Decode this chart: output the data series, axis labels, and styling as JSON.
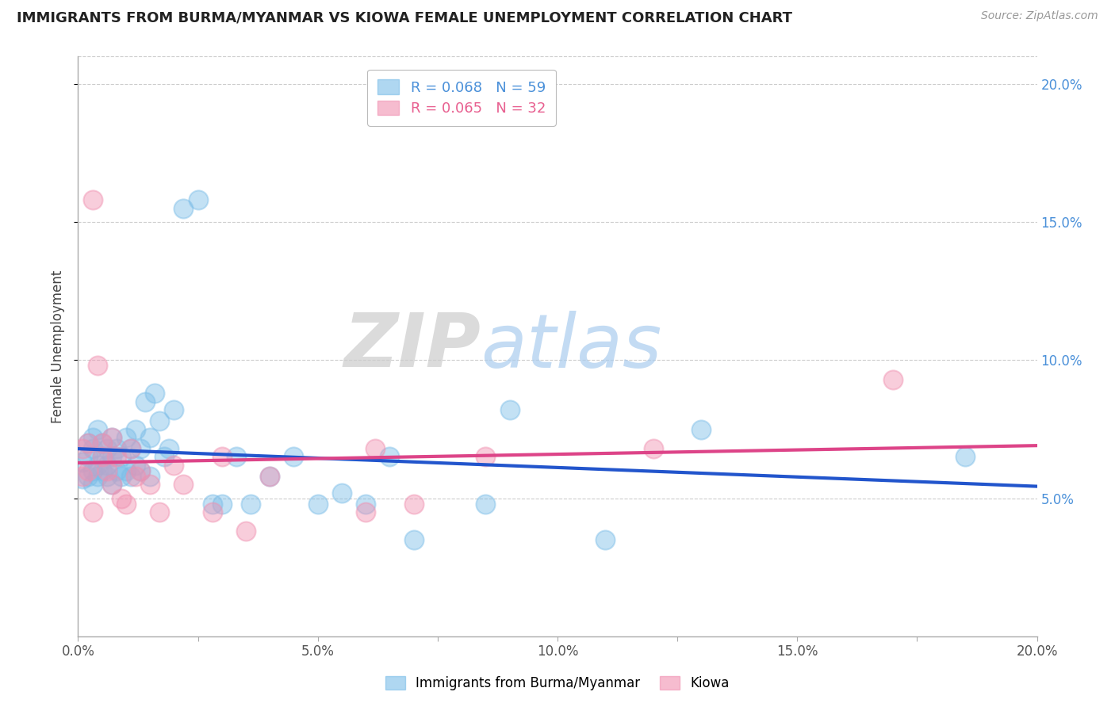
{
  "title": "IMMIGRANTS FROM BURMA/MYANMAR VS KIOWA FEMALE UNEMPLOYMENT CORRELATION CHART",
  "source_text": "Source: ZipAtlas.com",
  "ylabel": "Female Unemployment",
  "xlim": [
    0.0,
    0.2
  ],
  "ylim": [
    0.0,
    0.21
  ],
  "xtick_labels": [
    "0.0%",
    "",
    "5.0%",
    "",
    "10.0%",
    "",
    "15.0%",
    "",
    "20.0%"
  ],
  "xtick_vals": [
    0.0,
    0.025,
    0.05,
    0.075,
    0.1,
    0.125,
    0.15,
    0.175,
    0.2
  ],
  "ytick_labels": [
    "5.0%",
    "10.0%",
    "15.0%",
    "20.0%"
  ],
  "ytick_vals": [
    0.05,
    0.1,
    0.15,
    0.2
  ],
  "blue_color": "#7BBDE8",
  "pink_color": "#F090B0",
  "blue_line_color": "#2255CC",
  "pink_line_color": "#DD4488",
  "legend_blue_label": "Immigrants from Burma/Myanmar",
  "legend_pink_label": "Kiowa",
  "legend_blue_r": "R = 0.068",
  "legend_blue_n": "N = 59",
  "legend_pink_r": "R = 0.065",
  "legend_pink_n": "N = 32",
  "blue_scatter_x": [
    0.001,
    0.001,
    0.002,
    0.002,
    0.002,
    0.003,
    0.003,
    0.003,
    0.003,
    0.004,
    0.004,
    0.004,
    0.005,
    0.005,
    0.005,
    0.006,
    0.006,
    0.006,
    0.007,
    0.007,
    0.007,
    0.008,
    0.008,
    0.009,
    0.009,
    0.01,
    0.01,
    0.011,
    0.011,
    0.012,
    0.012,
    0.013,
    0.013,
    0.014,
    0.015,
    0.015,
    0.016,
    0.017,
    0.018,
    0.019,
    0.02,
    0.022,
    0.025,
    0.028,
    0.03,
    0.033,
    0.036,
    0.04,
    0.045,
    0.05,
    0.055,
    0.06,
    0.065,
    0.07,
    0.085,
    0.09,
    0.11,
    0.13,
    0.185
  ],
  "blue_scatter_y": [
    0.063,
    0.057,
    0.058,
    0.065,
    0.07,
    0.06,
    0.055,
    0.068,
    0.072,
    0.062,
    0.058,
    0.075,
    0.06,
    0.065,
    0.07,
    0.058,
    0.062,
    0.068,
    0.055,
    0.065,
    0.072,
    0.06,
    0.068,
    0.058,
    0.065,
    0.06,
    0.072,
    0.058,
    0.068,
    0.062,
    0.075,
    0.06,
    0.068,
    0.085,
    0.058,
    0.072,
    0.088,
    0.078,
    0.065,
    0.068,
    0.082,
    0.155,
    0.158,
    0.048,
    0.048,
    0.065,
    0.048,
    0.058,
    0.065,
    0.048,
    0.052,
    0.048,
    0.065,
    0.035,
    0.048,
    0.082,
    0.035,
    0.075,
    0.065
  ],
  "pink_scatter_x": [
    0.001,
    0.001,
    0.002,
    0.002,
    0.003,
    0.003,
    0.004,
    0.005,
    0.005,
    0.006,
    0.007,
    0.007,
    0.008,
    0.009,
    0.01,
    0.011,
    0.012,
    0.013,
    0.015,
    0.017,
    0.02,
    0.022,
    0.028,
    0.03,
    0.035,
    0.04,
    0.06,
    0.062,
    0.07,
    0.085,
    0.12,
    0.17
  ],
  "pink_scatter_y": [
    0.058,
    0.068,
    0.06,
    0.07,
    0.158,
    0.045,
    0.098,
    0.065,
    0.07,
    0.06,
    0.055,
    0.072,
    0.065,
    0.05,
    0.048,
    0.068,
    0.058,
    0.06,
    0.055,
    0.045,
    0.062,
    0.055,
    0.045,
    0.065,
    0.038,
    0.058,
    0.045,
    0.068,
    0.048,
    0.065,
    0.068,
    0.093
  ]
}
